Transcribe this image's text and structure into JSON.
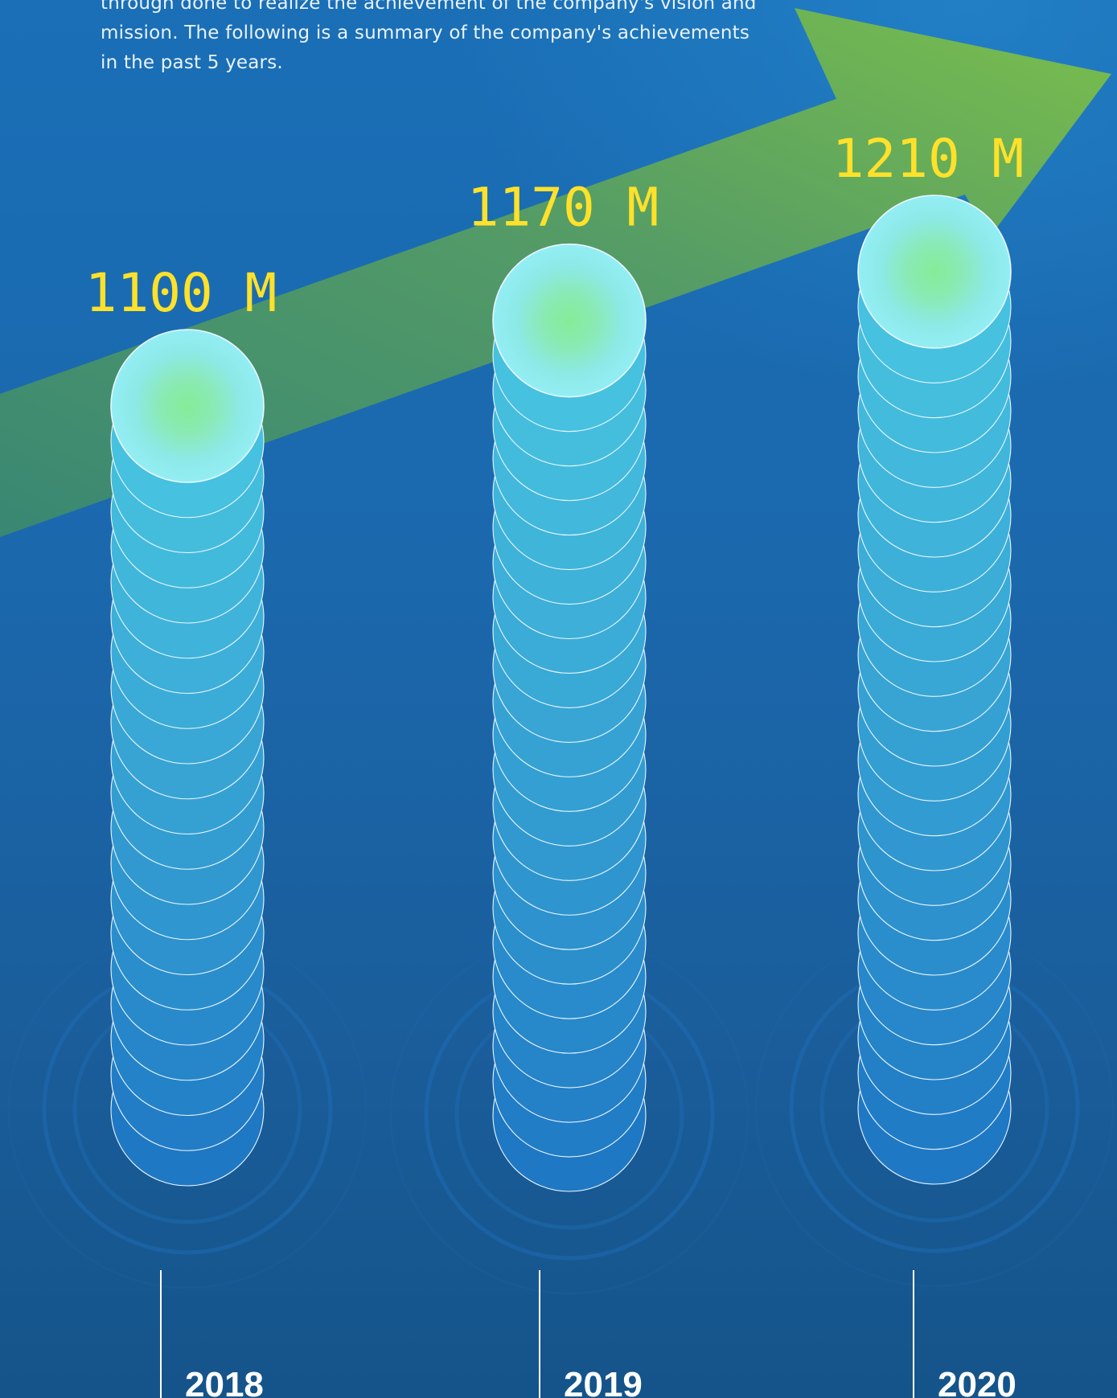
{
  "intro": {
    "text": "through done to realize the achievement of the company's vision and mission. The following is a summary of the company's achievements in the past 5 years."
  },
  "colors": {
    "background": "#1a6fb6",
    "arrow": "#7ac143",
    "value_label": "#ffe12a",
    "year_label": "#ffffff",
    "disc_top": "#8eeaf2",
    "disc_glow": "#8ae9a0"
  },
  "chart_data": {
    "type": "bar",
    "categories": [
      "2018",
      "2019",
      "2020"
    ],
    "values": [
      1100,
      1170,
      1210
    ],
    "value_labels": [
      "1100 M",
      "1170 M",
      "1210 M"
    ],
    "title": "",
    "xlabel": "",
    "ylabel": "",
    "grid": false,
    "legend": "none"
  }
}
